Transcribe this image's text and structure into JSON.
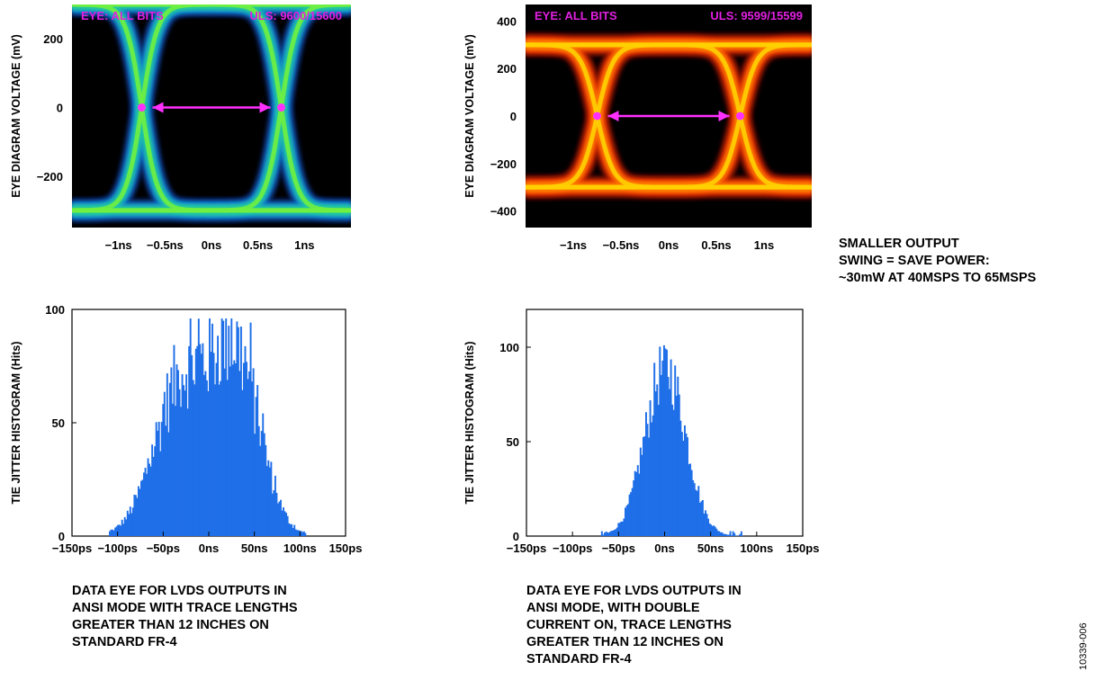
{
  "note": [
    "SMALLER OUTPUT",
    "SWING = SAVE POWER:",
    "~30mW AT 40MSPS TO 65MSPS"
  ],
  "figure_id": "10339-006",
  "chart_data": [
    {
      "type": "heatmap",
      "id": "eye1",
      "title": "",
      "label_left": "EYE: ALL BITS",
      "label_right": "ULS: 9600/15600",
      "xlabel": "",
      "ylabel": "EYE DIAGRAM VOLTAGE (mV)",
      "xlim": [
        -1.5,
        1.5
      ],
      "ylim": [
        -350,
        300
      ],
      "x_ticks": [
        -1,
        -0.5,
        0,
        0.5,
        1
      ],
      "x_tick_labels": [
        "−1ns",
        "−0.5ns",
        "0ns",
        "0.5ns",
        "1ns"
      ],
      "y_ticks": [
        200,
        0,
        -200
      ],
      "y_tick_labels": [
        "200",
        "0",
        "−200"
      ],
      "signal_amplitude_mV": 300,
      "crossings_ns": [
        -0.75,
        0.75
      ],
      "colormap": [
        "#000000",
        "#0a2a6e",
        "#0f7fd8",
        "#20c8a0",
        "#70f040"
      ],
      "marker_color": "#ff30ff"
    },
    {
      "type": "heatmap",
      "id": "eye2",
      "title": "",
      "label_left": "EYE: ALL BITS",
      "label_right": "ULS: 9599/15599",
      "xlabel": "",
      "ylabel": "EYE DIAGRAM VOLTAGE (mV)",
      "xlim": [
        -1.5,
        1.5
      ],
      "ylim": [
        -470,
        470
      ],
      "x_ticks": [
        -1,
        -0.5,
        0,
        0.5,
        1
      ],
      "x_tick_labels": [
        "−1ns",
        "−0.5ns",
        "0ns",
        "0.5ns",
        "1ns"
      ],
      "y_ticks": [
        400,
        200,
        0,
        -200,
        -400
      ],
      "y_tick_labels": [
        "400",
        "200",
        "0",
        "−200",
        "−400"
      ],
      "signal_amplitude_mV": 300,
      "crossings_ns": [
        -0.75,
        0.75
      ],
      "colormap": [
        "#000000",
        "#6a1000",
        "#e02800",
        "#ff7a00",
        "#ffd000"
      ],
      "marker_color": "#ff30ff"
    },
    {
      "type": "bar",
      "id": "hist1",
      "title": "",
      "xlabel": "",
      "ylabel": "TIE JITTER HISTOGRAM (Hits)",
      "xlim": [
        -150,
        150
      ],
      "ylim": [
        0,
        100
      ],
      "x_ticks": [
        -150,
        -100,
        -50,
        0,
        50,
        100,
        150
      ],
      "x_tick_labels": [
        "−150ps",
        "−100ps",
        "−50ps",
        "0ns",
        "50ns",
        "100ns",
        "150ps"
      ],
      "y_ticks": [
        0,
        50,
        100
      ],
      "y_tick_labels": [
        "0",
        "50",
        "100"
      ],
      "bar_color": "#1f6fe8",
      "distribution": {
        "shape": "bimodal",
        "peaks_ps": [
          -30,
          30
        ],
        "peak_hits": [
          70,
          82
        ],
        "max_hits": 96,
        "range_ps": [
          -110,
          105
        ]
      },
      "caption": [
        "DATA EYE FOR LVDS OUTPUTS IN",
        "ANSI MODE WITH TRACE LENGTHS",
        "GREATER THAN 12 INCHES ON",
        "STANDARD FR-4"
      ]
    },
    {
      "type": "bar",
      "id": "hist2",
      "title": "",
      "xlabel": "",
      "ylabel": "TIE JITTER HISTOGRAM (Hits)",
      "xlim": [
        -150,
        150
      ],
      "ylim": [
        0,
        120
      ],
      "x_ticks": [
        -150,
        -100,
        -50,
        0,
        50,
        100,
        150
      ],
      "x_tick_labels": [
        "−150ps",
        "−100ps",
        "−50ps",
        "0ns",
        "50ns",
        "100ns",
        "150ps"
      ],
      "y_ticks": [
        0,
        50,
        100
      ],
      "y_tick_labels": [
        "0",
        "50",
        "100"
      ],
      "bar_color": "#1f6fe8",
      "distribution": {
        "shape": "gaussian",
        "center_ps": 0,
        "sigma_ps": 22,
        "peak_hits": 92,
        "max_hits": 101,
        "range_ps": [
          -70,
          85
        ]
      },
      "caption": [
        "DATA EYE FOR LVDS OUTPUTS IN",
        "ANSI MODE, WITH DOUBLE",
        "CURRENT ON, TRACE LENGTHS",
        "GREATER THAN 12 INCHES ON",
        "STANDARD FR-4"
      ]
    }
  ]
}
